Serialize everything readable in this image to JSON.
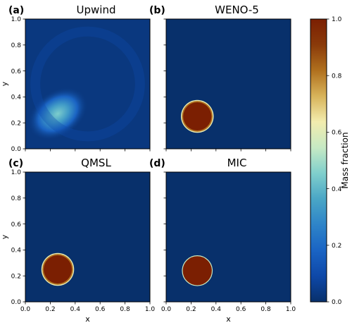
{
  "colorbar": {
    "label": "Mass fraction",
    "ticks": [
      "0.0",
      "0.2",
      "0.4",
      "0.6",
      "0.8",
      "1.0"
    ],
    "tick_values": [
      0.0,
      0.2,
      0.4,
      0.6,
      0.8,
      1.0
    ],
    "range": [
      0.0,
      1.0
    ],
    "colormap": [
      "#08306b",
      "#0e48a8",
      "#1a64c4",
      "#2e84c8",
      "#4aa6c6",
      "#80cfcc",
      "#c6e9c4",
      "#f2ecae",
      "#d8b35a",
      "#b0701e",
      "#8a3a0a",
      "#7b1f02"
    ]
  },
  "chart_data": [
    {
      "type": "heatmap",
      "panel_label": "(a)",
      "title": "Upwind",
      "xlabel": "",
      "ylabel": "y",
      "xlim": [
        0.0,
        1.0
      ],
      "ylim": [
        0.0,
        1.0
      ],
      "xticks": [],
      "yticks": [
        "0.0",
        "0.2",
        "0.4",
        "0.6",
        "0.8",
        "1.0"
      ],
      "background_value": 0.03,
      "features": [
        {
          "kind": "gaussian_blob",
          "center": [
            0.26,
            0.27
          ],
          "sigma": [
            0.12,
            0.08
          ],
          "angle_deg": -35,
          "peak": 0.45
        },
        {
          "kind": "faint_ring",
          "center": [
            0.5,
            0.5
          ],
          "radius": 0.42,
          "peak": 0.1
        }
      ]
    },
    {
      "type": "heatmap",
      "panel_label": "(b)",
      "title": "WENO-5",
      "xlabel": "",
      "ylabel": "",
      "xlim": [
        0.0,
        1.0
      ],
      "ylim": [
        0.0,
        1.0
      ],
      "xticks": [],
      "yticks": [],
      "background_value": 0.0,
      "features": [
        {
          "kind": "disk",
          "center": [
            0.25,
            0.25
          ],
          "radius": 0.12,
          "value": 1.0,
          "edge": "smooth"
        }
      ]
    },
    {
      "type": "heatmap",
      "panel_label": "(c)",
      "title": "QMSL",
      "xlabel": "x",
      "ylabel": "y",
      "xlim": [
        0.0,
        1.0
      ],
      "ylim": [
        0.0,
        1.0
      ],
      "xticks": [
        "0.0",
        "0.2",
        "0.4",
        "0.6",
        "0.8",
        "1.0"
      ],
      "yticks": [
        "0.0",
        "0.2",
        "0.4",
        "0.6",
        "0.8",
        "1.0"
      ],
      "background_value": 0.0,
      "features": [
        {
          "kind": "disk",
          "center": [
            0.26,
            0.25
          ],
          "radius": 0.12,
          "value": 1.0,
          "edge": "smooth"
        }
      ]
    },
    {
      "type": "heatmap",
      "panel_label": "(d)",
      "title": "MIC",
      "xlabel": "x",
      "ylabel": "",
      "xlim": [
        0.0,
        1.0
      ],
      "ylim": [
        0.0,
        1.0
      ],
      "xticks": [
        "0.0",
        "0.2",
        "0.4",
        "0.6",
        "0.8",
        "1.0"
      ],
      "yticks": [],
      "background_value": 0.0,
      "features": [
        {
          "kind": "disk",
          "center": [
            0.25,
            0.24
          ],
          "radius": 0.12,
          "value": 1.0,
          "edge": "sharp"
        }
      ]
    }
  ]
}
